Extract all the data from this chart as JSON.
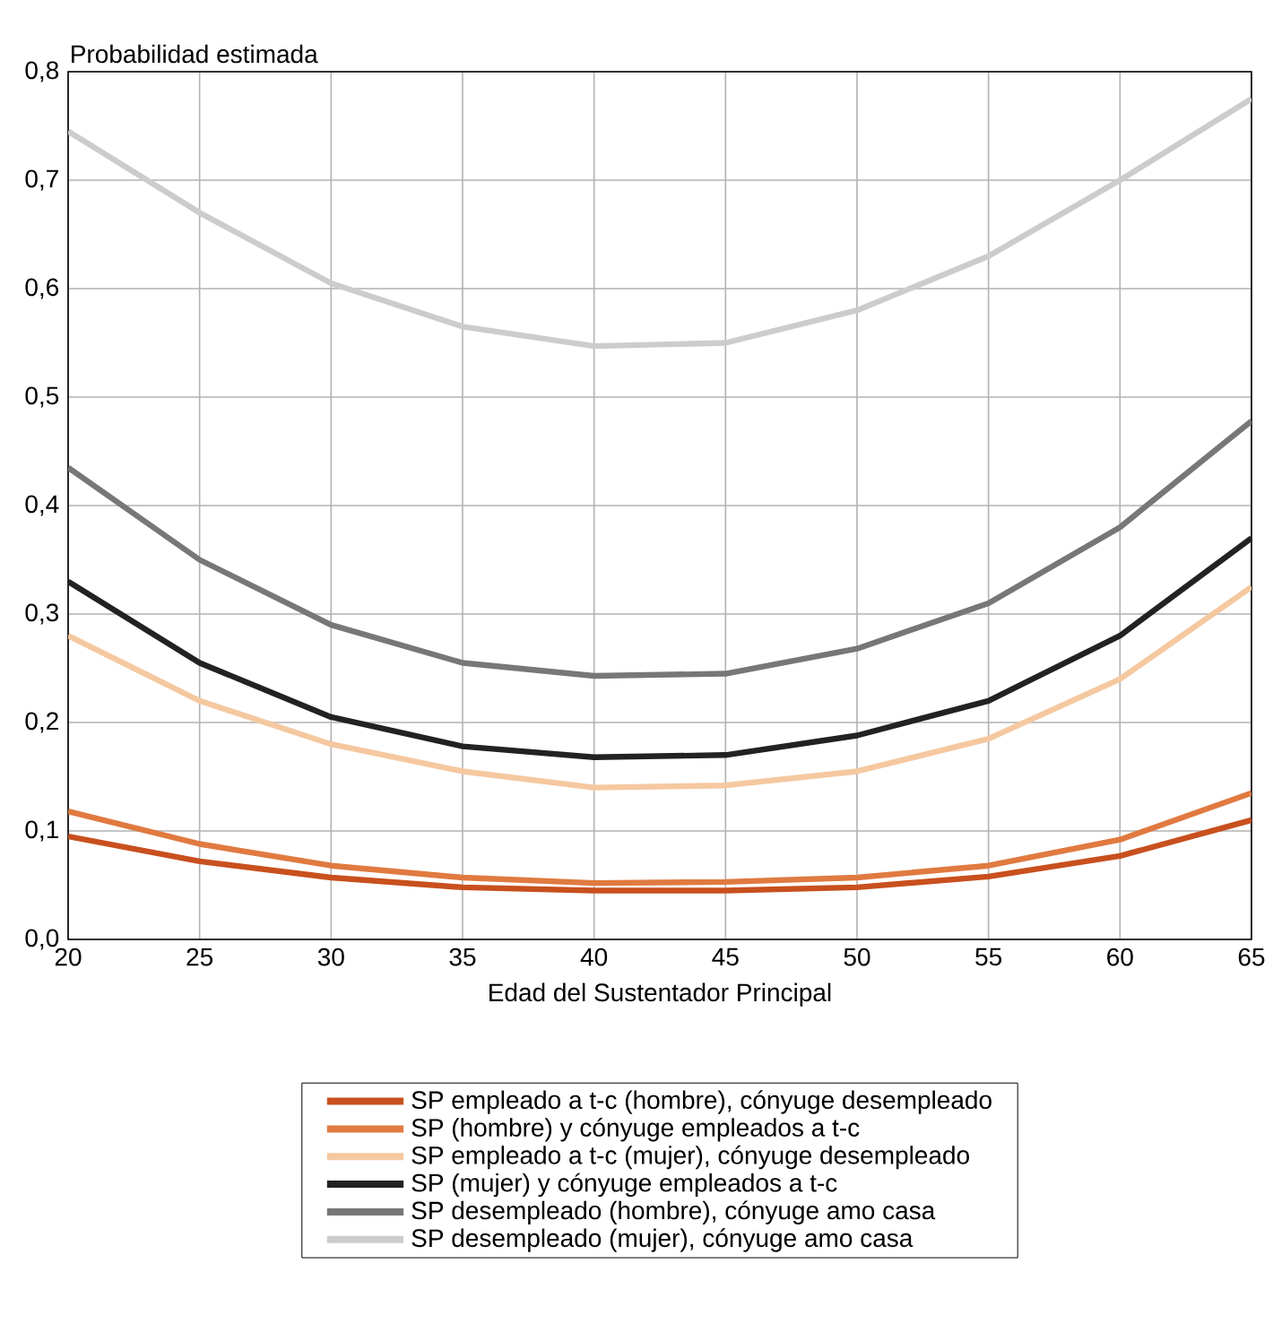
{
  "chart_data": {
    "type": "line",
    "ylabel": "Probabilidad estimada",
    "xlabel": "Edad del Sustentador Principal",
    "x": [
      20,
      25,
      30,
      35,
      40,
      45,
      50,
      55,
      60,
      65
    ],
    "xlim": [
      20,
      65
    ],
    "ylim": [
      0,
      0.8
    ],
    "xticks": [
      20,
      25,
      30,
      35,
      40,
      45,
      50,
      55,
      60,
      65
    ],
    "yticks": [
      {
        "value": 0,
        "label": "0,0"
      },
      {
        "value": 0.1,
        "label": "0,1"
      },
      {
        "value": 0.2,
        "label": "0,2"
      },
      {
        "value": 0.3,
        "label": "0,3"
      },
      {
        "value": 0.4,
        "label": "0,4"
      },
      {
        "value": 0.5,
        "label": "0,5"
      },
      {
        "value": 0.6,
        "label": "0,6"
      },
      {
        "value": 0.7,
        "label": "0,7"
      },
      {
        "value": 0.8,
        "label": "0,8"
      }
    ],
    "grid": true,
    "legend": "bottom",
    "marker": "none",
    "line_style": "solid",
    "series": [
      {
        "name": "SP empleado a t-c (hombre), cónyuge desempleado",
        "color": "#c8501e",
        "values": [
          0.095,
          0.072,
          0.057,
          0.048,
          0.045,
          0.045,
          0.048,
          0.058,
          0.077,
          0.11
        ]
      },
      {
        "name": "SP (hombre) y cónyuge empleados a t-c",
        "color": "#e07a40",
        "values": [
          0.118,
          0.088,
          0.068,
          0.057,
          0.052,
          0.053,
          0.057,
          0.068,
          0.092,
          0.135
        ]
      },
      {
        "name": "SP empleado a t-c (mujer), cónyuge desempleado",
        "color": "#f5c8a0",
        "values": [
          0.28,
          0.22,
          0.18,
          0.155,
          0.14,
          0.142,
          0.155,
          0.185,
          0.24,
          0.325
        ]
      },
      {
        "name": "SP (mujer) y cónyuge empleados a t-c",
        "color": "#222222",
        "values": [
          0.33,
          0.255,
          0.205,
          0.178,
          0.168,
          0.17,
          0.188,
          0.22,
          0.28,
          0.37
        ]
      },
      {
        "name": "SP desempleado (hombre), cónyuge amo casa",
        "color": "#777777",
        "values": [
          0.435,
          0.35,
          0.29,
          0.255,
          0.243,
          0.245,
          0.268,
          0.31,
          0.38,
          0.478
        ]
      },
      {
        "name": "SP desempleado (mujer), cónyuge amo casa",
        "color": "#cccccc",
        "values": [
          0.745,
          0.67,
          0.605,
          0.565,
          0.547,
          0.55,
          0.58,
          0.63,
          0.7,
          0.775
        ]
      }
    ]
  }
}
